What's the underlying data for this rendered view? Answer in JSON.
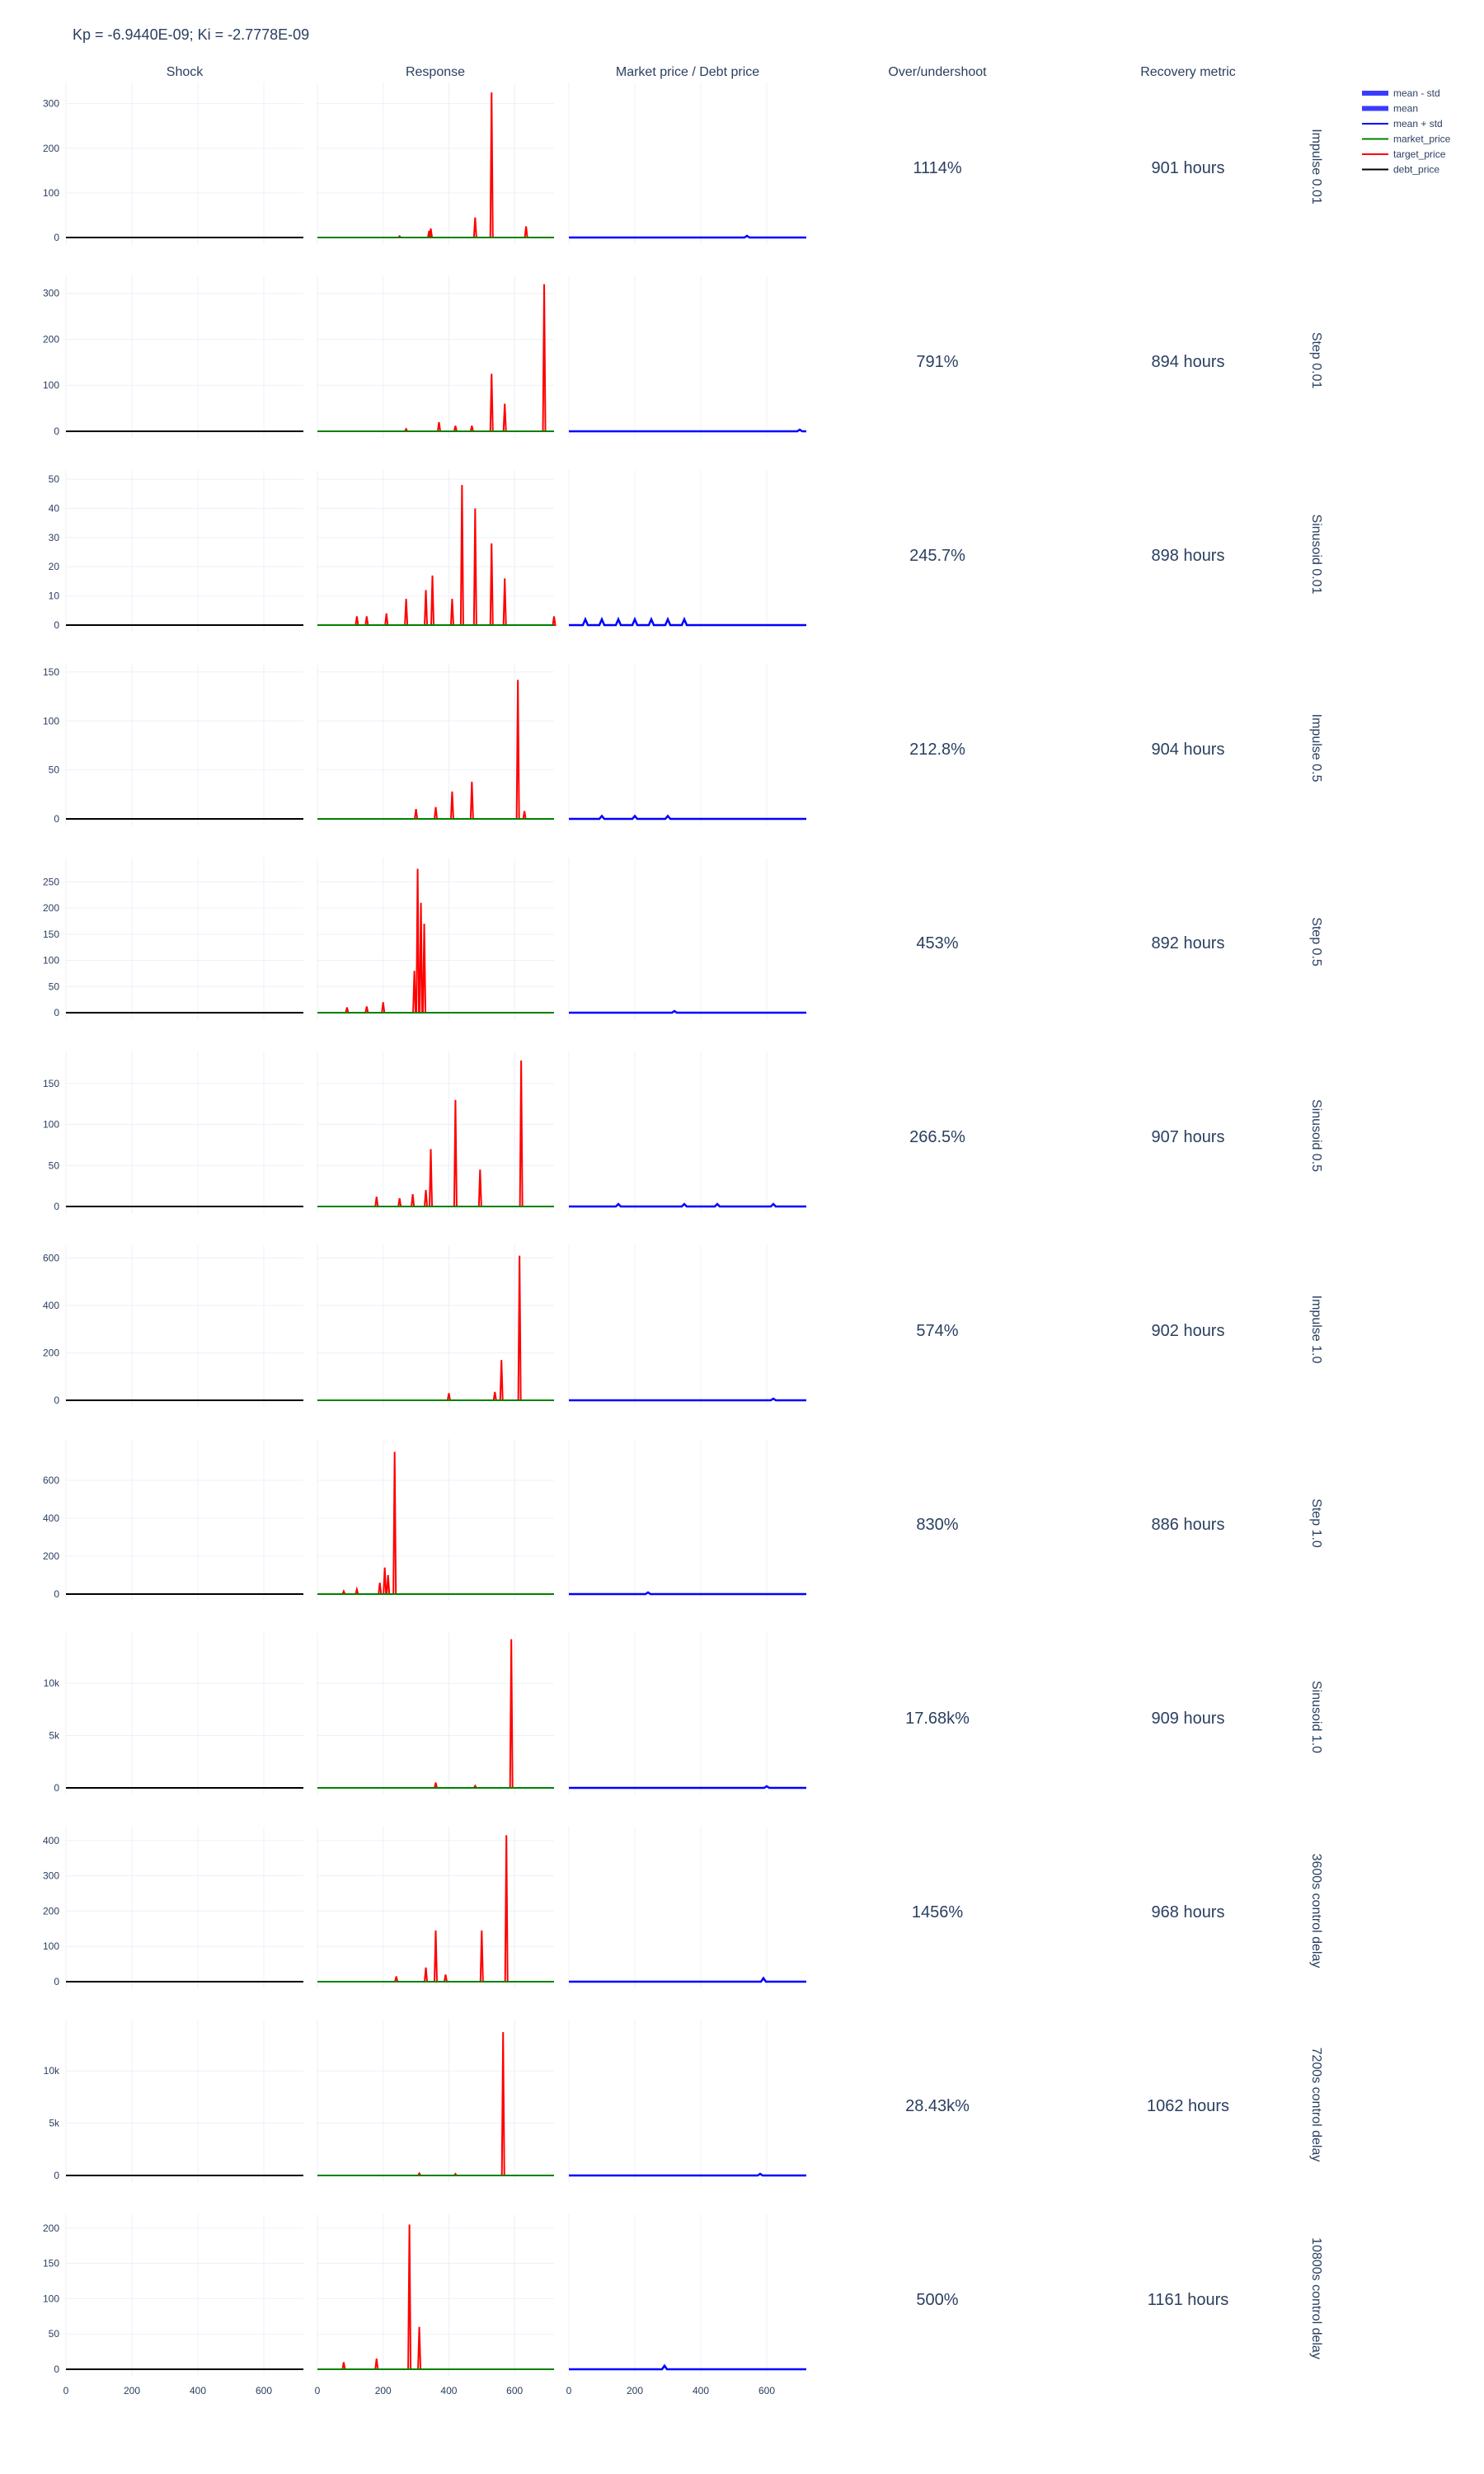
{
  "title": "Kp = -6.9440E-09; Ki = -2.7778E-09",
  "columns": [
    "Shock",
    "Response",
    "Market price / Debt price",
    "Over/undershoot",
    "Recovery metric"
  ],
  "legend": [
    {
      "label": "mean - std",
      "color": "#3b3bff",
      "kind": "band"
    },
    {
      "label": "mean",
      "color": "#3b3bff",
      "kind": "band"
    },
    {
      "label": "mean + std",
      "color": "#0000ff",
      "kind": "line"
    },
    {
      "label": "market_price",
      "color": "#008000",
      "kind": "line"
    },
    {
      "label": "target_price",
      "color": "#ff0000",
      "kind": "line"
    },
    {
      "label": "debt_price",
      "color": "#000000",
      "kind": "line"
    }
  ],
  "chart_data": {
    "type": "line",
    "x_ticks": [
      0,
      200,
      400,
      600
    ],
    "xlim": [
      0,
      720
    ],
    "rows": [
      {
        "label": "Impulse 0.01",
        "yticks": [
          "0",
          "100",
          "200",
          "300"
        ],
        "ytick_values": [
          0,
          100,
          200,
          300
        ],
        "ymax": 340,
        "overshoot": "1114%",
        "recovery": "901 hours",
        "spikes": [
          [
            250,
            3
          ],
          [
            340,
            15
          ],
          [
            345,
            20
          ],
          [
            480,
            45
          ],
          [
            530,
            325
          ],
          [
            635,
            25
          ]
        ],
        "mp_bumps": [
          [
            540,
            3
          ]
        ]
      },
      {
        "label": "Step 0.01",
        "yticks": [
          "0",
          "100",
          "200",
          "300"
        ],
        "ytick_values": [
          0,
          100,
          200,
          300
        ],
        "ymax": 330,
        "overshoot": "791%",
        "recovery": "894 hours",
        "spikes": [
          [
            270,
            5
          ],
          [
            370,
            20
          ],
          [
            420,
            12
          ],
          [
            470,
            12
          ],
          [
            530,
            125
          ],
          [
            570,
            60
          ],
          [
            690,
            320
          ]
        ],
        "mp_bumps": [
          [
            700,
            3
          ]
        ]
      },
      {
        "label": "Sinusoid 0.01",
        "yticks": [
          "0",
          "10",
          "20",
          "30",
          "40",
          "50"
        ],
        "ytick_values": [
          0,
          10,
          20,
          30,
          40,
          50
        ],
        "ymax": 52,
        "overshoot": "245.7%",
        "recovery": "898 hours",
        "spikes": [
          [
            120,
            3
          ],
          [
            150,
            3
          ],
          [
            210,
            4
          ],
          [
            270,
            9
          ],
          [
            330,
            12
          ],
          [
            350,
            17
          ],
          [
            410,
            9
          ],
          [
            440,
            48
          ],
          [
            480,
            40
          ],
          [
            530,
            28
          ],
          [
            570,
            16
          ],
          [
            720,
            3
          ]
        ],
        "mp_bumps": [
          [
            50,
            2
          ],
          [
            100,
            2
          ],
          [
            150,
            2
          ],
          [
            200,
            2
          ],
          [
            250,
            2
          ],
          [
            300,
            2
          ],
          [
            350,
            2
          ]
        ]
      },
      {
        "label": "Impulse 0.5",
        "yticks": [
          "0",
          "50",
          "100",
          "150"
        ],
        "ytick_values": [
          0,
          50,
          100,
          150
        ],
        "ymax": 155,
        "overshoot": "212.8%",
        "recovery": "904 hours",
        "spikes": [
          [
            300,
            10
          ],
          [
            360,
            12
          ],
          [
            410,
            28
          ],
          [
            470,
            38
          ],
          [
            610,
            142
          ],
          [
            630,
            8
          ]
        ],
        "mp_bumps": [
          [
            100,
            3
          ],
          [
            200,
            3
          ],
          [
            300,
            3
          ]
        ]
      },
      {
        "label": "Step 0.5",
        "yticks": [
          "0",
          "50",
          "100",
          "150",
          "200",
          "250"
        ],
        "ytick_values": [
          0,
          50,
          100,
          150,
          200,
          250
        ],
        "ymax": 290,
        "overshoot": "453%",
        "recovery": "892 hours",
        "spikes": [
          [
            90,
            10
          ],
          [
            150,
            12
          ],
          [
            200,
            20
          ],
          [
            295,
            80
          ],
          [
            305,
            275
          ],
          [
            315,
            210
          ],
          [
            325,
            170
          ]
        ],
        "mp_bumps": [
          [
            320,
            3
          ]
        ]
      },
      {
        "label": "Sinusoid 0.5",
        "yticks": [
          "0",
          "50",
          "100",
          "150"
        ],
        "ytick_values": [
          0,
          50,
          100,
          150
        ],
        "ymax": 185,
        "overshoot": "266.5%",
        "recovery": "907 hours",
        "spikes": [
          [
            180,
            12
          ],
          [
            250,
            10
          ],
          [
            290,
            15
          ],
          [
            330,
            20
          ],
          [
            345,
            70
          ],
          [
            420,
            130
          ],
          [
            495,
            45
          ],
          [
            620,
            178
          ]
        ],
        "mp_bumps": [
          [
            150,
            3
          ],
          [
            350,
            3
          ],
          [
            450,
            3
          ],
          [
            620,
            3
          ]
        ]
      },
      {
        "label": "Impulse 1.0",
        "yticks": [
          "0",
          "200",
          "400",
          "600"
        ],
        "ytick_values": [
          0,
          200,
          400,
          600
        ],
        "ymax": 640,
        "overshoot": "574%",
        "recovery": "902 hours",
        "spikes": [
          [
            400,
            30
          ],
          [
            540,
            35
          ],
          [
            560,
            170
          ],
          [
            615,
            610
          ]
        ],
        "mp_bumps": [
          [
            620,
            5
          ]
        ]
      },
      {
        "label": "Step 1.0",
        "yticks": [
          "0",
          "200",
          "400",
          "600"
        ],
        "ytick_values": [
          0,
          200,
          400,
          600
        ],
        "ymax": 800,
        "overshoot": "830%",
        "recovery": "886 hours",
        "spikes": [
          [
            80,
            15
          ],
          [
            120,
            25
          ],
          [
            190,
            60
          ],
          [
            205,
            140
          ],
          [
            215,
            100
          ],
          [
            235,
            750
          ]
        ],
        "mp_bumps": [
          [
            240,
            5
          ]
        ]
      },
      {
        "label": "Sinusoid 1.0",
        "yticks": [
          "0",
          "5k",
          "10k"
        ],
        "ytick_values": [
          0,
          5000,
          10000
        ],
        "ymax": 14500,
        "overshoot": "17.68k%",
        "recovery": "909 hours",
        "spikes": [
          [
            360,
            500
          ],
          [
            480,
            200
          ],
          [
            590,
            14200
          ]
        ],
        "mp_bumps": [
          [
            600,
            150
          ]
        ]
      },
      {
        "label": "3600s control delay",
        "yticks": [
          "0",
          "100",
          "200",
          "300",
          "400"
        ],
        "ytick_values": [
          0,
          100,
          200,
          300,
          400
        ],
        "ymax": 430,
        "overshoot": "1456%",
        "recovery": "968 hours",
        "spikes": [
          [
            240,
            15
          ],
          [
            330,
            40
          ],
          [
            360,
            145
          ],
          [
            390,
            20
          ],
          [
            500,
            145
          ],
          [
            575,
            415
          ]
        ],
        "mp_bumps": [
          [
            590,
            10
          ]
        ]
      },
      {
        "label": "7200s control delay",
        "yticks": [
          "0",
          "5k",
          "10k"
        ],
        "ytick_values": [
          0,
          5000,
          10000
        ],
        "ymax": 14500,
        "overshoot": "28.43k%",
        "recovery": "1062 hours",
        "spikes": [
          [
            310,
            200
          ],
          [
            420,
            150
          ],
          [
            565,
            13700
          ]
        ],
        "mp_bumps": [
          [
            580,
            150
          ]
        ]
      },
      {
        "label": "10800s control delay",
        "yticks": [
          "0",
          "50",
          "100",
          "150",
          "200"
        ],
        "ytick_values": [
          0,
          50,
          100,
          150,
          200
        ],
        "ymax": 215,
        "overshoot": "500%",
        "recovery": "1161 hours",
        "spikes": [
          [
            80,
            10
          ],
          [
            180,
            15
          ],
          [
            280,
            205
          ],
          [
            310,
            60
          ]
        ],
        "mp_bumps": [
          [
            290,
            5
          ]
        ]
      }
    ]
  }
}
